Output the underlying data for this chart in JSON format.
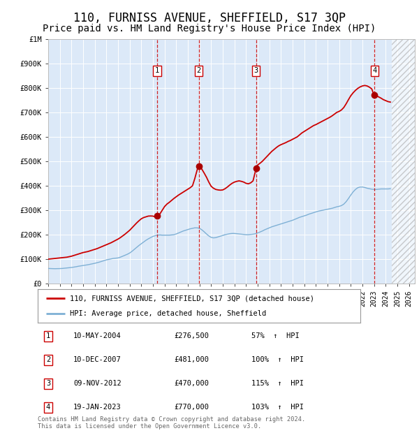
{
  "title": "110, FURNISS AVENUE, SHEFFIELD, S17 3QP",
  "subtitle": "Price paid vs. HM Land Registry's House Price Index (HPI)",
  "title_fontsize": 12,
  "subtitle_fontsize": 10,
  "fig_bg_color": "#ffffff",
  "plot_bg_color": "#dce9f8",
  "ylim": [
    0,
    1000000
  ],
  "xlim_start": 1995.0,
  "xlim_end": 2026.5,
  "yticks": [
    0,
    100000,
    200000,
    300000,
    400000,
    500000,
    600000,
    700000,
    800000,
    900000,
    1000000
  ],
  "ytick_labels": [
    "£0",
    "£100K",
    "£200K",
    "£300K",
    "£400K",
    "£500K",
    "£600K",
    "£700K",
    "£800K",
    "£900K",
    "£1M"
  ],
  "xticks": [
    1995,
    1996,
    1997,
    1998,
    1999,
    2000,
    2001,
    2002,
    2003,
    2004,
    2005,
    2006,
    2007,
    2008,
    2009,
    2010,
    2011,
    2012,
    2013,
    2014,
    2015,
    2016,
    2017,
    2018,
    2019,
    2020,
    2021,
    2022,
    2023,
    2024,
    2025,
    2026
  ],
  "red_line_label": "110, FURNISS AVENUE, SHEFFIELD, S17 3QP (detached house)",
  "blue_line_label": "HPI: Average price, detached house, Sheffield",
  "red_color": "#cc0000",
  "blue_color": "#7eb0d5",
  "dot_color": "#aa0000",
  "transactions": [
    {
      "id": 1,
      "date": "10-MAY-2004",
      "price": 276500,
      "pct": "57%",
      "year": 2004.36
    },
    {
      "id": 2,
      "date": "10-DEC-2007",
      "price": 481000,
      "pct": "100%",
      "year": 2007.94
    },
    {
      "id": 3,
      "date": "09-NOV-2012",
      "price": 470000,
      "pct": "115%",
      "year": 2012.86
    },
    {
      "id": 4,
      "date": "19-JAN-2023",
      "price": 770000,
      "pct": "103%",
      "year": 2023.05
    }
  ],
  "footnote": "Contains HM Land Registry data © Crown copyright and database right 2024.\nThis data is licensed under the Open Government Licence v3.0.",
  "hpi_data_years": [
    1995.0,
    1995.2,
    1995.4,
    1995.6,
    1995.8,
    1996.0,
    1996.2,
    1996.4,
    1996.6,
    1996.8,
    1997.0,
    1997.2,
    1997.4,
    1997.6,
    1997.8,
    1998.0,
    1998.2,
    1998.4,
    1998.6,
    1998.8,
    1999.0,
    1999.2,
    1999.4,
    1999.6,
    1999.8,
    2000.0,
    2000.2,
    2000.4,
    2000.6,
    2000.8,
    2001.0,
    2001.2,
    2001.4,
    2001.6,
    2001.8,
    2002.0,
    2002.2,
    2002.4,
    2002.6,
    2002.8,
    2003.0,
    2003.2,
    2003.4,
    2003.6,
    2003.8,
    2004.0,
    2004.2,
    2004.4,
    2004.6,
    2004.8,
    2005.0,
    2005.2,
    2005.4,
    2005.6,
    2005.8,
    2006.0,
    2006.2,
    2006.4,
    2006.6,
    2006.8,
    2007.0,
    2007.2,
    2007.4,
    2007.6,
    2007.8,
    2008.0,
    2008.2,
    2008.4,
    2008.6,
    2008.8,
    2009.0,
    2009.2,
    2009.4,
    2009.6,
    2009.8,
    2010.0,
    2010.2,
    2010.4,
    2010.6,
    2010.8,
    2011.0,
    2011.2,
    2011.4,
    2011.6,
    2011.8,
    2012.0,
    2012.2,
    2012.4,
    2012.6,
    2012.8,
    2013.0,
    2013.2,
    2013.4,
    2013.6,
    2013.8,
    2014.0,
    2014.2,
    2014.4,
    2014.6,
    2014.8,
    2015.0,
    2015.2,
    2015.4,
    2015.6,
    2015.8,
    2016.0,
    2016.2,
    2016.4,
    2016.6,
    2016.8,
    2017.0,
    2017.2,
    2017.4,
    2017.6,
    2017.8,
    2018.0,
    2018.2,
    2018.4,
    2018.6,
    2018.8,
    2019.0,
    2019.2,
    2019.4,
    2019.6,
    2019.8,
    2020.0,
    2020.2,
    2020.4,
    2020.6,
    2020.8,
    2021.0,
    2021.2,
    2021.4,
    2021.6,
    2021.8,
    2022.0,
    2022.2,
    2022.4,
    2022.6,
    2022.8,
    2023.0,
    2023.2,
    2023.4,
    2023.6,
    2023.8,
    2024.0,
    2024.2,
    2024.4
  ],
  "hpi_data_values": [
    62000,
    61500,
    61200,
    61000,
    61200,
    61500,
    62000,
    63000,
    64000,
    65000,
    66000,
    67500,
    69000,
    71000,
    72500,
    74000,
    75500,
    77000,
    79000,
    81000,
    83000,
    85500,
    88000,
    91000,
    94000,
    97000,
    99000,
    101000,
    103000,
    104000,
    105000,
    108000,
    112000,
    116000,
    120000,
    125000,
    132000,
    140000,
    148000,
    156000,
    163000,
    170000,
    177000,
    183000,
    188000,
    193000,
    196000,
    198000,
    199000,
    198000,
    198000,
    198000,
    198000,
    199000,
    200000,
    203000,
    207000,
    211000,
    215000,
    218000,
    221000,
    224000,
    226000,
    228000,
    228000,
    226000,
    220000,
    212000,
    203000,
    195000,
    189000,
    187000,
    188000,
    191000,
    194000,
    197000,
    200000,
    202000,
    204000,
    205000,
    205000,
    204000,
    203000,
    202000,
    201000,
    200000,
    200000,
    201000,
    202000,
    204000,
    207000,
    211000,
    215000,
    220000,
    224000,
    228000,
    232000,
    235000,
    238000,
    241000,
    244000,
    247000,
    250000,
    253000,
    256000,
    259000,
    263000,
    267000,
    271000,
    274000,
    277000,
    280000,
    284000,
    287000,
    290000,
    293000,
    296000,
    298000,
    300000,
    302000,
    304000,
    306000,
    308000,
    311000,
    314000,
    316000,
    319000,
    325000,
    335000,
    348000,
    362000,
    375000,
    385000,
    392000,
    395000,
    395000,
    393000,
    390000,
    388000,
    386000,
    385000,
    385000,
    386000,
    387000,
    387000,
    387000,
    387000,
    388000
  ],
  "prop_data_years": [
    1995.0,
    1995.2,
    1995.4,
    1995.6,
    1995.8,
    1996.0,
    1996.2,
    1996.4,
    1996.6,
    1996.8,
    1997.0,
    1997.2,
    1997.4,
    1997.6,
    1997.8,
    1998.0,
    1998.2,
    1998.4,
    1998.6,
    1998.8,
    1999.0,
    1999.2,
    1999.4,
    1999.6,
    1999.8,
    2000.0,
    2000.2,
    2000.4,
    2000.6,
    2000.8,
    2001.0,
    2001.2,
    2001.4,
    2001.6,
    2001.8,
    2002.0,
    2002.2,
    2002.4,
    2002.6,
    2002.8,
    2003.0,
    2003.2,
    2003.4,
    2003.6,
    2003.8,
    2004.0,
    2004.2,
    2004.36,
    2004.6,
    2004.8,
    2005.0,
    2005.2,
    2005.4,
    2005.6,
    2005.8,
    2006.0,
    2006.2,
    2006.4,
    2006.6,
    2006.8,
    2007.0,
    2007.2,
    2007.4,
    2007.6,
    2007.8,
    2007.94,
    2008.0,
    2008.2,
    2008.4,
    2008.6,
    2008.8,
    2009.0,
    2009.2,
    2009.4,
    2009.6,
    2009.8,
    2010.0,
    2010.2,
    2010.4,
    2010.6,
    2010.8,
    2011.0,
    2011.2,
    2011.4,
    2011.6,
    2011.8,
    2012.0,
    2012.2,
    2012.4,
    2012.6,
    2012.86,
    2013.0,
    2013.2,
    2013.4,
    2013.6,
    2013.8,
    2014.0,
    2014.2,
    2014.4,
    2014.6,
    2014.8,
    2015.0,
    2015.2,
    2015.4,
    2015.6,
    2015.8,
    2016.0,
    2016.2,
    2016.4,
    2016.6,
    2016.8,
    2017.0,
    2017.2,
    2017.4,
    2017.6,
    2017.8,
    2018.0,
    2018.2,
    2018.4,
    2018.6,
    2018.8,
    2019.0,
    2019.2,
    2019.4,
    2019.6,
    2019.8,
    2020.0,
    2020.2,
    2020.4,
    2020.6,
    2020.8,
    2021.0,
    2021.2,
    2021.4,
    2021.6,
    2021.8,
    2022.0,
    2022.2,
    2022.4,
    2022.6,
    2022.8,
    2023.0,
    2023.05,
    2023.2,
    2023.4,
    2023.6,
    2023.8,
    2024.0,
    2024.2,
    2024.4
  ],
  "prop_data_values": [
    100000,
    101000,
    102000,
    103000,
    104000,
    105000,
    106000,
    107000,
    108000,
    110000,
    112000,
    115000,
    118000,
    121000,
    124000,
    127000,
    129000,
    131000,
    134000,
    137000,
    140000,
    143000,
    147000,
    151000,
    155000,
    159000,
    163000,
    167000,
    172000,
    177000,
    182000,
    188000,
    195000,
    202000,
    210000,
    218000,
    228000,
    238000,
    248000,
    257000,
    265000,
    270000,
    273000,
    276000,
    276500,
    276000,
    272000,
    276500,
    285000,
    300000,
    315000,
    325000,
    332000,
    340000,
    348000,
    355000,
    362000,
    368000,
    374000,
    380000,
    386000,
    392000,
    400000,
    430000,
    465000,
    481000,
    478000,
    468000,
    452000,
    435000,
    415000,
    398000,
    390000,
    385000,
    383000,
    382000,
    383000,
    388000,
    395000,
    403000,
    410000,
    415000,
    418000,
    420000,
    418000,
    415000,
    410000,
    408000,
    412000,
    420000,
    470000,
    485000,
    492000,
    500000,
    510000,
    520000,
    530000,
    540000,
    548000,
    556000,
    563000,
    568000,
    572000,
    576000,
    581000,
    585000,
    590000,
    595000,
    600000,
    608000,
    616000,
    622000,
    628000,
    634000,
    640000,
    646000,
    650000,
    655000,
    660000,
    665000,
    670000,
    675000,
    680000,
    686000,
    693000,
    700000,
    704000,
    710000,
    720000,
    735000,
    752000,
    768000,
    780000,
    790000,
    798000,
    804000,
    808000,
    810000,
    808000,
    803000,
    796000,
    770000,
    770000,
    768000,
    763000,
    758000,
    752000,
    748000,
    744000,
    742000
  ]
}
